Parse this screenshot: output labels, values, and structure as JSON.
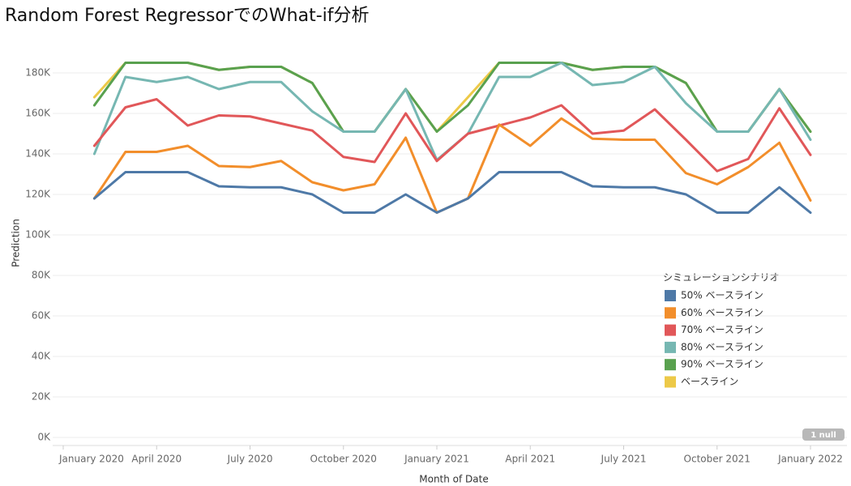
{
  "chart_data": {
    "type": "line",
    "title": "Random Forest RegressorでのWhat-if分析",
    "x_label": "Month of Date",
    "y_label": "Prediction",
    "x": [
      "2020-02",
      "2020-03",
      "2020-04",
      "2020-05",
      "2020-06",
      "2020-07",
      "2020-08",
      "2020-09",
      "2020-10",
      "2020-11",
      "2020-12",
      "2021-01",
      "2021-02",
      "2021-03",
      "2021-04",
      "2021-05",
      "2021-06",
      "2021-07",
      "2021-08",
      "2021-09",
      "2021-10",
      "2021-11",
      "2021-12",
      "2022-01"
    ],
    "xlim": [
      "2020-01",
      "2022-01"
    ],
    "xticks": [
      {
        "value": "2020-01",
        "label": "January 2020"
      },
      {
        "value": "2020-04",
        "label": "April 2020"
      },
      {
        "value": "2020-07",
        "label": "July 2020"
      },
      {
        "value": "2020-10",
        "label": "October 2020"
      },
      {
        "value": "2021-01",
        "label": "January 2021"
      },
      {
        "value": "2021-04",
        "label": "April 2021"
      },
      {
        "value": "2021-07",
        "label": "July 2021"
      },
      {
        "value": "2021-10",
        "label": "October 2021"
      },
      {
        "value": "2022-01",
        "label": "January 2022"
      }
    ],
    "ylim": [
      0,
      190000
    ],
    "yticks": [
      {
        "value": 0,
        "label": "0K"
      },
      {
        "value": 20000,
        "label": "20K"
      },
      {
        "value": 40000,
        "label": "40K"
      },
      {
        "value": 60000,
        "label": "60K"
      },
      {
        "value": 80000,
        "label": "80K"
      },
      {
        "value": 100000,
        "label": "100K"
      },
      {
        "value": 120000,
        "label": "120K"
      },
      {
        "value": 140000,
        "label": "140K"
      },
      {
        "value": 160000,
        "label": "160K"
      },
      {
        "value": 180000,
        "label": "180K"
      }
    ],
    "grid": true,
    "legend_title": "シミュレーションシナリオ",
    "legend_position": "right",
    "annotations": [
      "1 null"
    ],
    "series": [
      {
        "name": "50% ベースライン",
        "color": "#4e79a7",
        "values": [
          118000,
          131000,
          131000,
          131000,
          124000,
          123500,
          123500,
          120000,
          111000,
          111000,
          120000,
          111000,
          118000,
          131000,
          131000,
          131000,
          124000,
          123500,
          123500,
          120000,
          111000,
          111000,
          123500,
          111000
        ]
      },
      {
        "name": "60% ベースライン",
        "color": "#f28e2b",
        "values": [
          118000,
          141000,
          141000,
          144000,
          134000,
          133500,
          136500,
          126000,
          122000,
          125000,
          148000,
          111000,
          118000,
          154500,
          144000,
          157500,
          147500,
          147000,
          147000,
          130500,
          125000,
          133500,
          145500,
          117000
        ]
      },
      {
        "name": "70% ベースライン",
        "color": "#e15759",
        "values": [
          144000,
          163000,
          167000,
          154000,
          159000,
          158500,
          155000,
          151500,
          138500,
          136000,
          160000,
          136500,
          150000,
          154000,
          158000,
          164000,
          150000,
          151500,
          162000,
          147000,
          131500,
          137500,
          162500,
          139500
        ]
      },
      {
        "name": "80% ベースライン",
        "color": "#76b7b2",
        "values": [
          140000,
          178000,
          175500,
          178000,
          172000,
          175500,
          175500,
          161000,
          151000,
          151000,
          172000,
          137000,
          150000,
          178000,
          178000,
          185000,
          174000,
          175500,
          183000,
          165000,
          151000,
          151000,
          172000,
          147000
        ]
      },
      {
        "name": "90% ベースライン",
        "color": "#59a14f",
        "values": [
          164000,
          185000,
          185000,
          185000,
          181500,
          183000,
          183000,
          175000,
          151000,
          151000,
          172000,
          151000,
          164000,
          185000,
          185000,
          185000,
          181500,
          183000,
          183000,
          175000,
          151000,
          151000,
          172000,
          151000
        ]
      },
      {
        "name": "ベースライン",
        "color": "#edc948",
        "values": [
          168000,
          185000,
          185000,
          185000,
          181500,
          183000,
          183000,
          175000,
          151000,
          151000,
          172000,
          151000,
          168000,
          185000,
          185000,
          185000,
          181500,
          183000,
          183000,
          175000,
          151000,
          151000,
          172000,
          151000
        ]
      }
    ]
  }
}
